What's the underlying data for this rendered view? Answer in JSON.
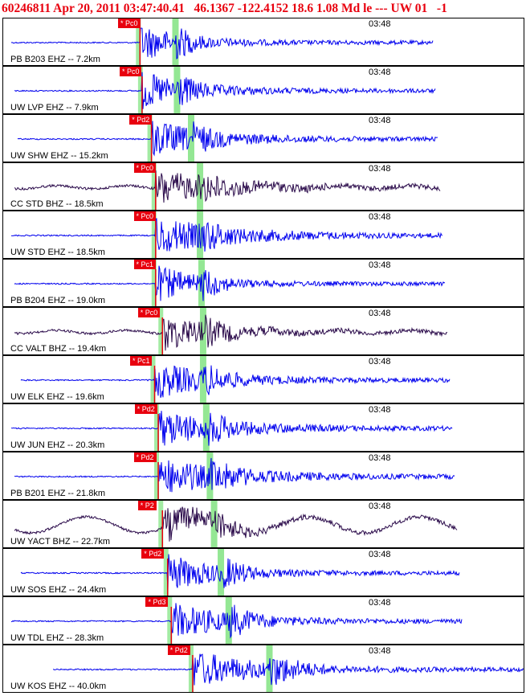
{
  "header": {
    "text": "60246811 Apr 20, 2011 03:47:40.41   46.1367 -122.4152 18.6 1.08 Md le --- UW 01   -1"
  },
  "colors": {
    "header": "#e8000e",
    "ehz_trace": "#0000ee",
    "bhz_trace": "#2a0a4a",
    "p_pick": "#e8000e",
    "s_window": "#66dd66",
    "pick_label_bg": "#e8000e"
  },
  "chart_data": {
    "type": "seismogram",
    "time_marker_label": "03:48",
    "traces": [
      {
        "station": "PB B203 EHZ -- 7.2km",
        "pick": "* Pc0",
        "component": "EHZ",
        "p_frac": 0.262,
        "s_frac": 0.33
      },
      {
        "station": "UW LVP EHZ -- 7.9km",
        "pick": "* Pc0",
        "component": "EHZ",
        "p_frac": 0.266,
        "s_frac": 0.333
      },
      {
        "station": "UW SHW EHZ -- 15.2km",
        "pick": "* Pd2",
        "component": "EHZ",
        "p_frac": 0.284,
        "s_frac": 0.36
      },
      {
        "station": "CC STD BHZ -- 18.5km",
        "pick": "* Pc0",
        "component": "BHZ",
        "p_frac": 0.292,
        "s_frac": 0.377
      },
      {
        "station": "UW STD EHZ -- 18.5km",
        "pick": "* Pc0",
        "component": "EHZ",
        "p_frac": 0.292,
        "s_frac": 0.377
      },
      {
        "station": "PB B204 EHZ -- 19.0km",
        "pick": "* Pc1",
        "component": "EHZ",
        "p_frac": 0.292,
        "s_frac": 0.38
      },
      {
        "station": "CC VALT BHZ -- 19.4km",
        "pick": "* Pc0",
        "component": "BHZ",
        "p_frac": 0.305,
        "s_frac": 0.383
      },
      {
        "station": "UW ELK EHZ -- 19.6km",
        "pick": "* Pc1",
        "component": "EHZ",
        "p_frac": 0.29,
        "s_frac": 0.383
      },
      {
        "station": "UW JUN EHZ -- 20.3km",
        "pick": "* Pd2",
        "component": "EHZ",
        "p_frac": 0.297,
        "s_frac": 0.389
      },
      {
        "station": "PB B201 EHZ -- 21.8km",
        "pick": "* Pd2",
        "component": "EHZ",
        "p_frac": 0.297,
        "s_frac": 0.396
      },
      {
        "station": "UW YACT BHZ -- 22.7km",
        "pick": "* P2",
        "component": "BHZ",
        "p_frac": 0.305,
        "s_frac": 0.404
      },
      {
        "station": "UW SOS EHZ -- 24.4km",
        "pick": "* Pd2",
        "component": "EHZ",
        "p_frac": 0.315,
        "s_frac": 0.417
      },
      {
        "station": "UW TDL EHZ -- 28.3km",
        "pick": "* Pd3",
        "component": "EHZ",
        "p_frac": 0.322,
        "s_frac": 0.432
      },
      {
        "station": "UW KOS EHZ -- 40.0km",
        "pick": "* Pd2",
        "component": "EHZ",
        "p_frac": 0.363,
        "s_frac": 0.51
      }
    ],
    "time_marker_frac": 0.7,
    "p_pick_label_frac": [
      0.22,
      0.223,
      0.242,
      0.25,
      0.25,
      0.25,
      0.258,
      0.243,
      0.252,
      0.25,
      0.258,
      0.265,
      0.273,
      0.315
    ]
  }
}
